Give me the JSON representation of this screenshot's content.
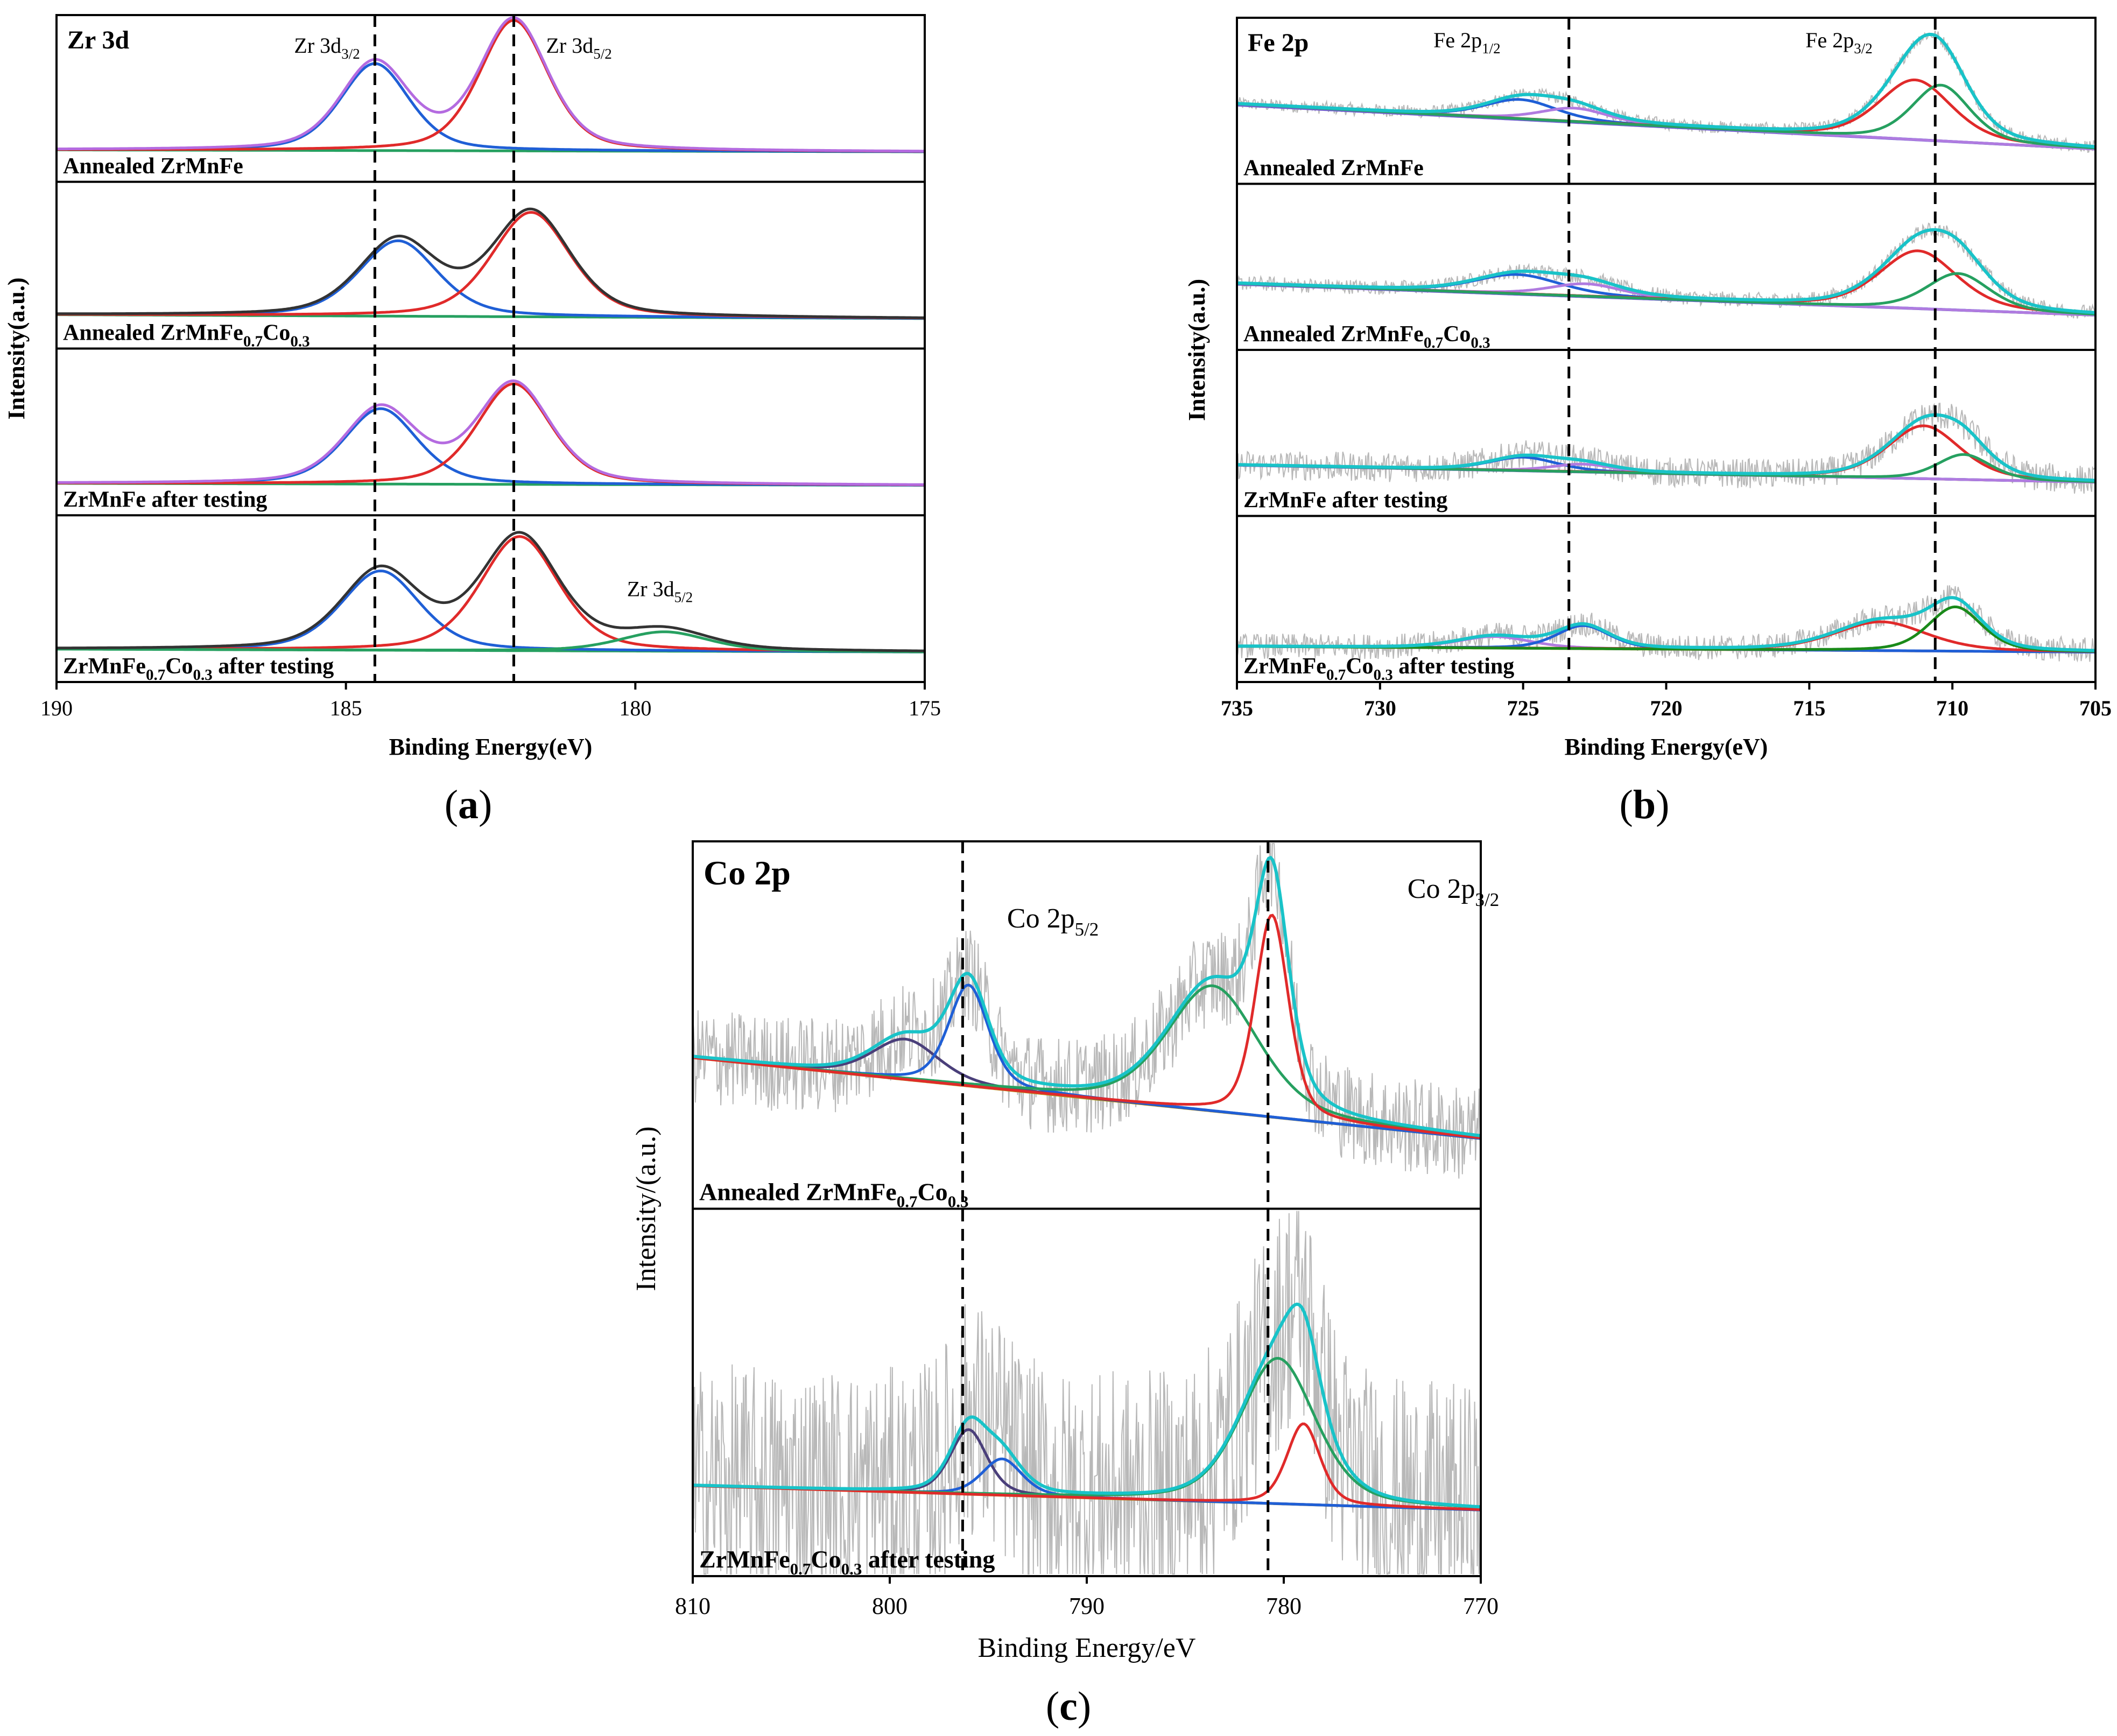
{
  "colors": {
    "axis": "#000000",
    "noise": "#b8b8b8",
    "envelope": "#19c3c8",
    "raw": "#333333",
    "purple_env": "#b46be0",
    "blue": "#1f5fd6",
    "red": "#e02a2a",
    "green": "#26a060",
    "darkgreen": "#1a8a1a",
    "violet": "#b07be0",
    "mustard": "#b59a1e",
    "indigo": "#7060d0",
    "navy": "#4a3f7a",
    "black": "#111111"
  },
  "chart_data": [
    {
      "type": "line",
      "id": "a",
      "caption": "(a)",
      "element_label": "Zr 3d",
      "xlabel": "Binding Energy(eV)",
      "ylabel": "Intensity(a.u.)",
      "xlim": [
        190,
        175
      ],
      "xticks": [
        "190",
        "185",
        "180",
        "175"
      ],
      "xtick_values": [
        190,
        185,
        180,
        175
      ],
      "reference_lines_eV": [
        184.5,
        182.1
      ],
      "annotations": [
        {
          "base": "Zr 3d",
          "sub": "3/2",
          "x_eV": 184.5
        },
        {
          "base": "Zr 3d",
          "sub": "5/2",
          "x_eV": 182.1
        },
        {
          "base": "Zr 3d",
          "sub": "5/2",
          "x_eV": 179.4,
          "panel": 3
        }
      ],
      "panels": [
        {
          "label_parts": [
            [
              "Annealed  ZrMnFe",
              ""
            ]
          ],
          "envelope_color": "purple_env",
          "background": {
            "left": 0.02,
            "right": 0.0
          },
          "peaks": [
            {
              "name": "Zr 3d3/2",
              "center": 184.5,
              "fwhm": 1.4,
              "height": 0.9,
              "color": "blue"
            },
            {
              "name": "Zr 3d5/2",
              "center": 182.1,
              "fwhm": 1.4,
              "height": 1.35,
              "color": "red"
            }
          ]
        },
        {
          "label_parts": [
            [
              "Annealed  ZrMnFe",
              ""
            ],
            [
              "0.7",
              "sub"
            ],
            [
              "Co",
              ""
            ],
            [
              "0.3",
              "sub"
            ]
          ],
          "envelope_color": "raw",
          "background": {
            "left": 0.04,
            "right": 0.0
          },
          "peaks": [
            {
              "name": "Zr 3d3/2",
              "center": 184.1,
              "fwhm": 1.6,
              "height": 0.78,
              "color": "blue"
            },
            {
              "name": "Zr 3d5/2",
              "center": 181.8,
              "fwhm": 1.6,
              "height": 1.08,
              "color": "red"
            }
          ]
        },
        {
          "label_parts": [
            [
              "ZrMnFe after testing",
              ""
            ]
          ],
          "envelope_color": "purple_env",
          "background": {
            "left": 0.02,
            "right": 0.0
          },
          "peaks": [
            {
              "name": "Zr 3d3/2",
              "center": 184.4,
              "fwhm": 1.5,
              "height": 0.78,
              "color": "blue"
            },
            {
              "name": "Zr 3d5/2",
              "center": 182.1,
              "fwhm": 1.5,
              "height": 1.04,
              "color": "red"
            }
          ]
        },
        {
          "label_parts": [
            [
              "ZrMnFe",
              ""
            ],
            [
              "0.7",
              "sub"
            ],
            [
              "Co",
              ""
            ],
            [
              "0.3",
              "sub"
            ],
            [
              " after testing",
              ""
            ]
          ],
          "envelope_color": "raw",
          "background": {
            "left": 0.03,
            "right": 0.0
          },
          "peaks": [
            {
              "name": "Zr 3d3/2",
              "center": 184.4,
              "fwhm": 1.6,
              "height": 0.82,
              "color": "blue"
            },
            {
              "name": "Zr 3d5/2",
              "center": 182.0,
              "fwhm": 1.6,
              "height": 1.18,
              "color": "red"
            },
            {
              "name": "Zr 3d5/2 (low BE)",
              "center": 179.5,
              "fwhm": 1.8,
              "height": 0.2,
              "color": "green"
            }
          ]
        }
      ]
    },
    {
      "type": "line",
      "id": "b",
      "caption": "(b)",
      "element_label": "Fe 2p",
      "xlabel": "Binding Energy(eV)",
      "ylabel": "Intensity(a.u.)",
      "xlim": [
        735,
        705
      ],
      "xticks": [
        "735",
        "730",
        "725",
        "720",
        "715",
        "710",
        "705"
      ],
      "xtick_values": [
        735,
        730,
        725,
        720,
        715,
        710,
        705
      ],
      "reference_lines_eV": [
        723.4,
        710.6
      ],
      "annotations": [
        {
          "base": "Fe 2p",
          "sub": "1/2",
          "x_eV": 725.5
        },
        {
          "base": "Fe 2p",
          "sub": "3/2",
          "x_eV": 712.5
        }
      ],
      "panels": [
        {
          "label_parts": [
            [
              "Annealed  ZrMnFe",
              ""
            ]
          ],
          "noise": 0.06,
          "background": {
            "left": 0.52,
            "right": 0.05
          },
          "peaks": [
            {
              "center": 725.1,
              "fwhm": 3.0,
              "height": 0.2,
              "color": "blue"
            },
            {
              "center": 723.2,
              "fwhm": 2.8,
              "height": 0.14,
              "color": "violet"
            },
            {
              "center": 711.3,
              "fwhm": 3.0,
              "height": 0.62,
              "color": "red"
            },
            {
              "center": 710.4,
              "fwhm": 2.4,
              "height": 0.58,
              "color": "green"
            }
          ]
        },
        {
          "label_parts": [
            [
              "Annealed  ZrMnFe",
              ""
            ],
            [
              "0.7",
              "sub"
            ],
            [
              "Co",
              ""
            ],
            [
              "0.3",
              "sub"
            ]
          ],
          "noise": 0.07,
          "background": {
            "left": 0.38,
            "right": 0.05
          },
          "peaks": [
            {
              "center": 725.2,
              "fwhm": 3.6,
              "height": 0.2,
              "color": "blue"
            },
            {
              "center": 722.8,
              "fwhm": 3.0,
              "height": 0.13,
              "color": "violet"
            },
            {
              "center": 711.2,
              "fwhm": 3.2,
              "height": 0.6,
              "color": "red"
            },
            {
              "center": 709.8,
              "fwhm": 2.6,
              "height": 0.38,
              "color": "green"
            }
          ]
        },
        {
          "label_parts": [
            [
              "ZrMnFe after testing",
              ""
            ]
          ],
          "noise": 0.14,
          "background": {
            "left": 0.22,
            "right": 0.04
          },
          "peaks": [
            {
              "center": 725.0,
              "fwhm": 2.8,
              "height": 0.14,
              "color": "blue"
            },
            {
              "center": 722.9,
              "fwhm": 2.6,
              "height": 0.08,
              "color": "violet"
            },
            {
              "center": 711.0,
              "fwhm": 3.0,
              "height": 0.55,
              "color": "red"
            },
            {
              "center": 709.6,
              "fwhm": 2.2,
              "height": 0.26,
              "color": "green"
            }
          ]
        },
        {
          "label_parts": [
            [
              "ZrMnFe",
              ""
            ],
            [
              "0.7",
              "sub"
            ],
            [
              "Co",
              ""
            ],
            [
              "0.3",
              "sub"
            ],
            [
              " after testing",
              ""
            ]
          ],
          "noise": 0.12,
          "background": {
            "left": 0.06,
            "right": 0.0
          },
          "peaks": [
            {
              "center": 726.0,
              "fwhm": 3.0,
              "height": 0.12,
              "color": "violet"
            },
            {
              "center": 722.9,
              "fwhm": 2.2,
              "height": 0.24,
              "color": "blue"
            },
            {
              "center": 712.5,
              "fwhm": 3.8,
              "height": 0.3,
              "color": "red"
            },
            {
              "center": 709.9,
              "fwhm": 2.2,
              "height": 0.46,
              "color": "darkgreen"
            }
          ]
        }
      ]
    },
    {
      "type": "line",
      "id": "c",
      "caption": "(c)",
      "element_label": "Co 2p",
      "xlabel": "Binding Energy/eV",
      "ylabel": "Intensity/(a.u.)",
      "xlim": [
        810,
        770
      ],
      "xticks": [
        "810",
        "800",
        "790",
        "780",
        "770"
      ],
      "xtick_values": [
        810,
        800,
        790,
        780,
        770
      ],
      "reference_lines_eV": [
        796.3,
        780.8
      ],
      "annotations": [
        {
          "base": "Co 2p",
          "sub": "5/2",
          "x_eV": 793.5
        },
        {
          "base": "Co 2p",
          "sub": "3/2",
          "x_eV": 777.0
        }
      ],
      "panels": [
        {
          "label_parts": [
            [
              "Annealed  ZrMnFe",
              ""
            ],
            [
              "0.7",
              "sub"
            ],
            [
              "Co",
              ""
            ],
            [
              "0.3",
              "sub"
            ]
          ],
          "noise": 0.22,
          "background": {
            "left": 0.42,
            "right": 0.02
          },
          "peaks": [
            {
              "center": 799.2,
              "fwhm": 4.0,
              "height": 0.2,
              "color": "navy"
            },
            {
              "center": 796.0,
              "fwhm": 2.4,
              "height": 0.5,
              "color": "blue"
            },
            {
              "center": 783.6,
              "fwhm": 5.5,
              "height": 0.62,
              "color": "green"
            },
            {
              "center": 780.6,
              "fwhm": 2.0,
              "height": 1.0,
              "color": "red"
            }
          ]
        },
        {
          "label_parts": [
            [
              "ZrMnFe",
              ""
            ],
            [
              "0.7",
              "sub"
            ],
            [
              "Co",
              ""
            ],
            [
              "0.3",
              "sub"
            ],
            [
              " after testing",
              ""
            ]
          ],
          "noise": 0.55,
          "background": {
            "left": 0.12,
            "right": 0.0
          },
          "peaks": [
            {
              "center": 796.0,
              "fwhm": 2.2,
              "height": 0.32,
              "color": "navy"
            },
            {
              "center": 794.3,
              "fwhm": 2.4,
              "height": 0.18,
              "color": "blue"
            },
            {
              "center": 780.3,
              "fwhm": 4.5,
              "height": 0.72,
              "color": "green"
            },
            {
              "center": 779.0,
              "fwhm": 2.0,
              "height": 0.4,
              "color": "red"
            }
          ]
        }
      ]
    }
  ]
}
